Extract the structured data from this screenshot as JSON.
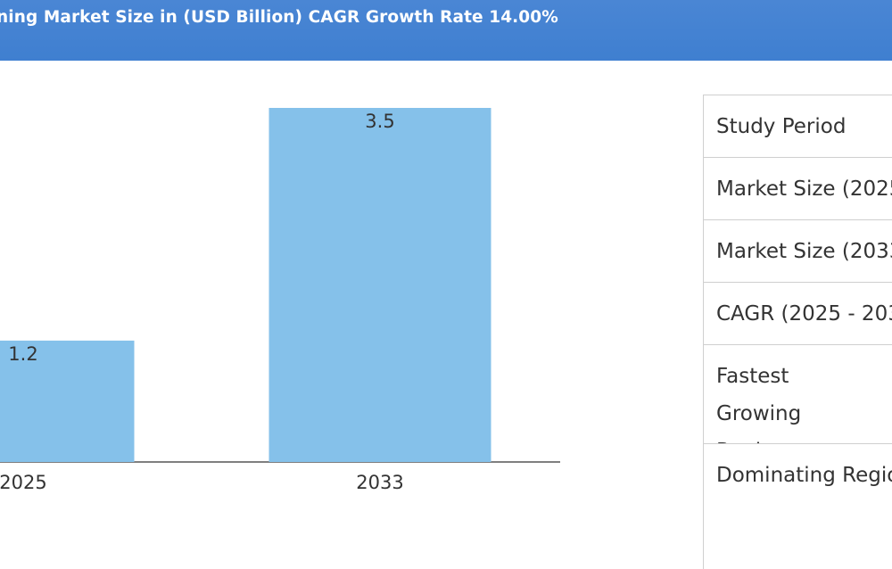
{
  "header": {
    "title": "ning Market Size in (USD Billion) CAGR Growth Rate 14.00%"
  },
  "info_table": {
    "rows": [
      "Study Period",
      "Market Size (2025",
      "Market Size (2033",
      "CAGR (2025 - 203",
      "Fastest Growing Region",
      "Dominating Regio"
    ]
  },
  "colors": {
    "header": "#4a86d4",
    "bar": "#85c1ea",
    "axis": "#555555"
  },
  "chart_data": {
    "type": "bar",
    "categories": [
      "2025",
      "2033"
    ],
    "values": [
      1.2,
      3.5
    ],
    "data_labels": [
      "1.2",
      "3.5"
    ],
    "ylim": [
      0,
      3.5
    ],
    "grid": false,
    "legend": "none"
  }
}
